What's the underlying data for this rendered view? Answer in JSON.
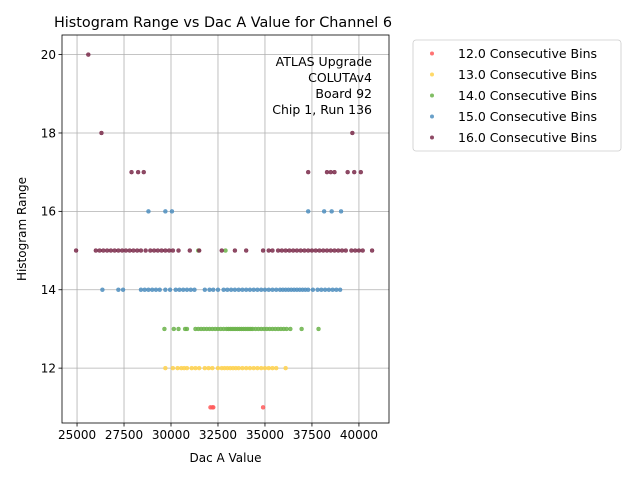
{
  "chart_data": {
    "type": "scatter",
    "title": "Histogram Range vs Dac A Value for Channel 6",
    "xlabel": "Dac A Value",
    "ylabel": "Histogram Range",
    "xlim": [
      24200,
      41600
    ],
    "ylim": [
      10.6,
      20.5
    ],
    "xticks": [
      25000,
      27500,
      30000,
      32500,
      35000,
      37500,
      40000
    ],
    "xtick_labels": [
      "25000",
      "27500",
      "30000",
      "32500",
      "35000",
      "37500",
      "40000"
    ],
    "yticks": [
      12,
      14,
      16,
      18,
      20
    ],
    "ytick_labels": [
      "12",
      "14",
      "16",
      "18",
      "20"
    ],
    "grid": true,
    "legend_position": "outside-right",
    "annotation": [
      "ATLAS Upgrade",
      "COLUTAv4",
      "Board 92",
      "Chip 1, Run 136"
    ],
    "series": [
      {
        "name": "12.0 Consecutive Bins",
        "color": "#ff5a5a",
        "points": [
          [
            32100,
            11
          ],
          [
            32200,
            11
          ],
          [
            32250,
            11
          ],
          [
            34900,
            11
          ]
        ]
      },
      {
        "name": "13.0 Consecutive Bins",
        "color": "#ffd24d",
        "points": [
          [
            29700,
            12
          ],
          [
            30100,
            12
          ],
          [
            30350,
            12
          ],
          [
            30550,
            12
          ],
          [
            30700,
            12
          ],
          [
            30850,
            12
          ],
          [
            31100,
            12
          ],
          [
            31300,
            12
          ],
          [
            31500,
            12
          ],
          [
            31800,
            12
          ],
          [
            32000,
            12
          ],
          [
            32200,
            12
          ],
          [
            32500,
            12
          ],
          [
            32700,
            12
          ],
          [
            32850,
            12
          ],
          [
            33000,
            12
          ],
          [
            33150,
            12
          ],
          [
            33300,
            12
          ],
          [
            33450,
            12
          ],
          [
            33600,
            12
          ],
          [
            33800,
            12
          ],
          [
            34000,
            12
          ],
          [
            34200,
            12
          ],
          [
            34400,
            12
          ],
          [
            34600,
            12
          ],
          [
            34800,
            12
          ],
          [
            35000,
            12
          ],
          [
            35200,
            12
          ],
          [
            35400,
            12
          ],
          [
            35600,
            12
          ],
          [
            36100,
            12
          ]
        ]
      },
      {
        "name": "14.0 Consecutive Bins",
        "color": "#6bb34a",
        "points": [
          [
            29650,
            13
          ],
          [
            30150,
            13
          ],
          [
            30400,
            13
          ],
          [
            30750,
            13
          ],
          [
            30850,
            13
          ],
          [
            31300,
            13
          ],
          [
            31450,
            13
          ],
          [
            31600,
            13
          ],
          [
            31750,
            13
          ],
          [
            31900,
            13
          ],
          [
            32050,
            13
          ],
          [
            32200,
            13
          ],
          [
            32350,
            13
          ],
          [
            32500,
            13
          ],
          [
            32650,
            13
          ],
          [
            32800,
            13
          ],
          [
            32950,
            13
          ],
          [
            33050,
            13
          ],
          [
            33150,
            13
          ],
          [
            33250,
            13
          ],
          [
            33350,
            13
          ],
          [
            33450,
            13
          ],
          [
            33550,
            13
          ],
          [
            33650,
            13
          ],
          [
            33750,
            13
          ],
          [
            33850,
            13
          ],
          [
            33950,
            13
          ],
          [
            34050,
            13
          ],
          [
            34150,
            13
          ],
          [
            34250,
            13
          ],
          [
            34350,
            13
          ],
          [
            34500,
            13
          ],
          [
            34650,
            13
          ],
          [
            34800,
            13
          ],
          [
            34950,
            13
          ],
          [
            35100,
            13
          ],
          [
            35250,
            13
          ],
          [
            35400,
            13
          ],
          [
            35550,
            13
          ],
          [
            35700,
            13
          ],
          [
            35850,
            13
          ],
          [
            36000,
            13
          ],
          [
            36150,
            13
          ],
          [
            36350,
            13
          ],
          [
            36950,
            13
          ],
          [
            37850,
            13
          ],
          [
            31450,
            15
          ],
          [
            32900,
            15
          ]
        ]
      },
      {
        "name": "15.0 Consecutive Bins",
        "color": "#4f8fbf",
        "points": [
          [
            26350,
            14
          ],
          [
            27200,
            14
          ],
          [
            27450,
            14
          ],
          [
            28400,
            14
          ],
          [
            28600,
            14
          ],
          [
            28800,
            14
          ],
          [
            29000,
            14
          ],
          [
            29200,
            14
          ],
          [
            29400,
            14
          ],
          [
            29700,
            14
          ],
          [
            29950,
            14
          ],
          [
            30250,
            14
          ],
          [
            30450,
            14
          ],
          [
            30650,
            14
          ],
          [
            30850,
            14
          ],
          [
            31050,
            14
          ],
          [
            31250,
            14
          ],
          [
            31800,
            14
          ],
          [
            32050,
            14
          ],
          [
            32250,
            14
          ],
          [
            32500,
            14
          ],
          [
            32800,
            14
          ],
          [
            33000,
            14
          ],
          [
            33200,
            14
          ],
          [
            33400,
            14
          ],
          [
            33600,
            14
          ],
          [
            33800,
            14
          ],
          [
            34000,
            14
          ],
          [
            34200,
            14
          ],
          [
            34400,
            14
          ],
          [
            34600,
            14
          ],
          [
            34800,
            14
          ],
          [
            35000,
            14
          ],
          [
            35200,
            14
          ],
          [
            35400,
            14
          ],
          [
            35600,
            14
          ],
          [
            35800,
            14
          ],
          [
            35950,
            14
          ],
          [
            36100,
            14
          ],
          [
            36250,
            14
          ],
          [
            36400,
            14
          ],
          [
            36550,
            14
          ],
          [
            36700,
            14
          ],
          [
            36850,
            14
          ],
          [
            37000,
            14
          ],
          [
            37150,
            14
          ],
          [
            37300,
            14
          ],
          [
            37550,
            14
          ],
          [
            37800,
            14
          ],
          [
            38000,
            14
          ],
          [
            38200,
            14
          ],
          [
            38400,
            14
          ],
          [
            38600,
            14
          ],
          [
            38800,
            14
          ],
          [
            39000,
            14
          ],
          [
            28800,
            16
          ],
          [
            29700,
            16
          ],
          [
            30050,
            16
          ],
          [
            37300,
            16
          ],
          [
            38150,
            16
          ],
          [
            38550,
            16
          ],
          [
            39050,
            16
          ]
        ]
      },
      {
        "name": "16.0 Consecutive Bins",
        "color": "#7a2a4a",
        "points": [
          [
            24950,
            15
          ],
          [
            26000,
            15
          ],
          [
            26200,
            15
          ],
          [
            26400,
            15
          ],
          [
            26600,
            15
          ],
          [
            26800,
            15
          ],
          [
            27000,
            15
          ],
          [
            27200,
            15
          ],
          [
            27400,
            15
          ],
          [
            27600,
            15
          ],
          [
            27800,
            15
          ],
          [
            28000,
            15
          ],
          [
            28200,
            15
          ],
          [
            28400,
            15
          ],
          [
            28650,
            15
          ],
          [
            28900,
            15
          ],
          [
            29100,
            15
          ],
          [
            29300,
            15
          ],
          [
            29500,
            15
          ],
          [
            29700,
            15
          ],
          [
            29900,
            15
          ],
          [
            30100,
            15
          ],
          [
            30400,
            15
          ],
          [
            31000,
            15
          ],
          [
            31500,
            15
          ],
          [
            32700,
            15
          ],
          [
            33400,
            15
          ],
          [
            34000,
            15
          ],
          [
            34900,
            15
          ],
          [
            35200,
            15
          ],
          [
            35400,
            15
          ],
          [
            35700,
            15
          ],
          [
            35900,
            15
          ],
          [
            36100,
            15
          ],
          [
            36300,
            15
          ],
          [
            36500,
            15
          ],
          [
            36700,
            15
          ],
          [
            36900,
            15
          ],
          [
            37100,
            15
          ],
          [
            37300,
            15
          ],
          [
            37500,
            15
          ],
          [
            37700,
            15
          ],
          [
            37900,
            15
          ],
          [
            38100,
            15
          ],
          [
            38300,
            15
          ],
          [
            38500,
            15
          ],
          [
            38700,
            15
          ],
          [
            38900,
            15
          ],
          [
            39100,
            15
          ],
          [
            39300,
            15
          ],
          [
            39600,
            15
          ],
          [
            39800,
            15
          ],
          [
            40000,
            15
          ],
          [
            40200,
            15
          ],
          [
            40700,
            15
          ],
          [
            27900,
            17
          ],
          [
            28250,
            17
          ],
          [
            28550,
            17
          ],
          [
            37300,
            17
          ],
          [
            38300,
            17
          ],
          [
            38500,
            17
          ],
          [
            38700,
            17
          ],
          [
            39400,
            17
          ],
          [
            39750,
            17
          ],
          [
            40100,
            17
          ],
          [
            26300,
            18
          ],
          [
            39650,
            18
          ],
          [
            25600,
            20
          ]
        ]
      }
    ]
  }
}
